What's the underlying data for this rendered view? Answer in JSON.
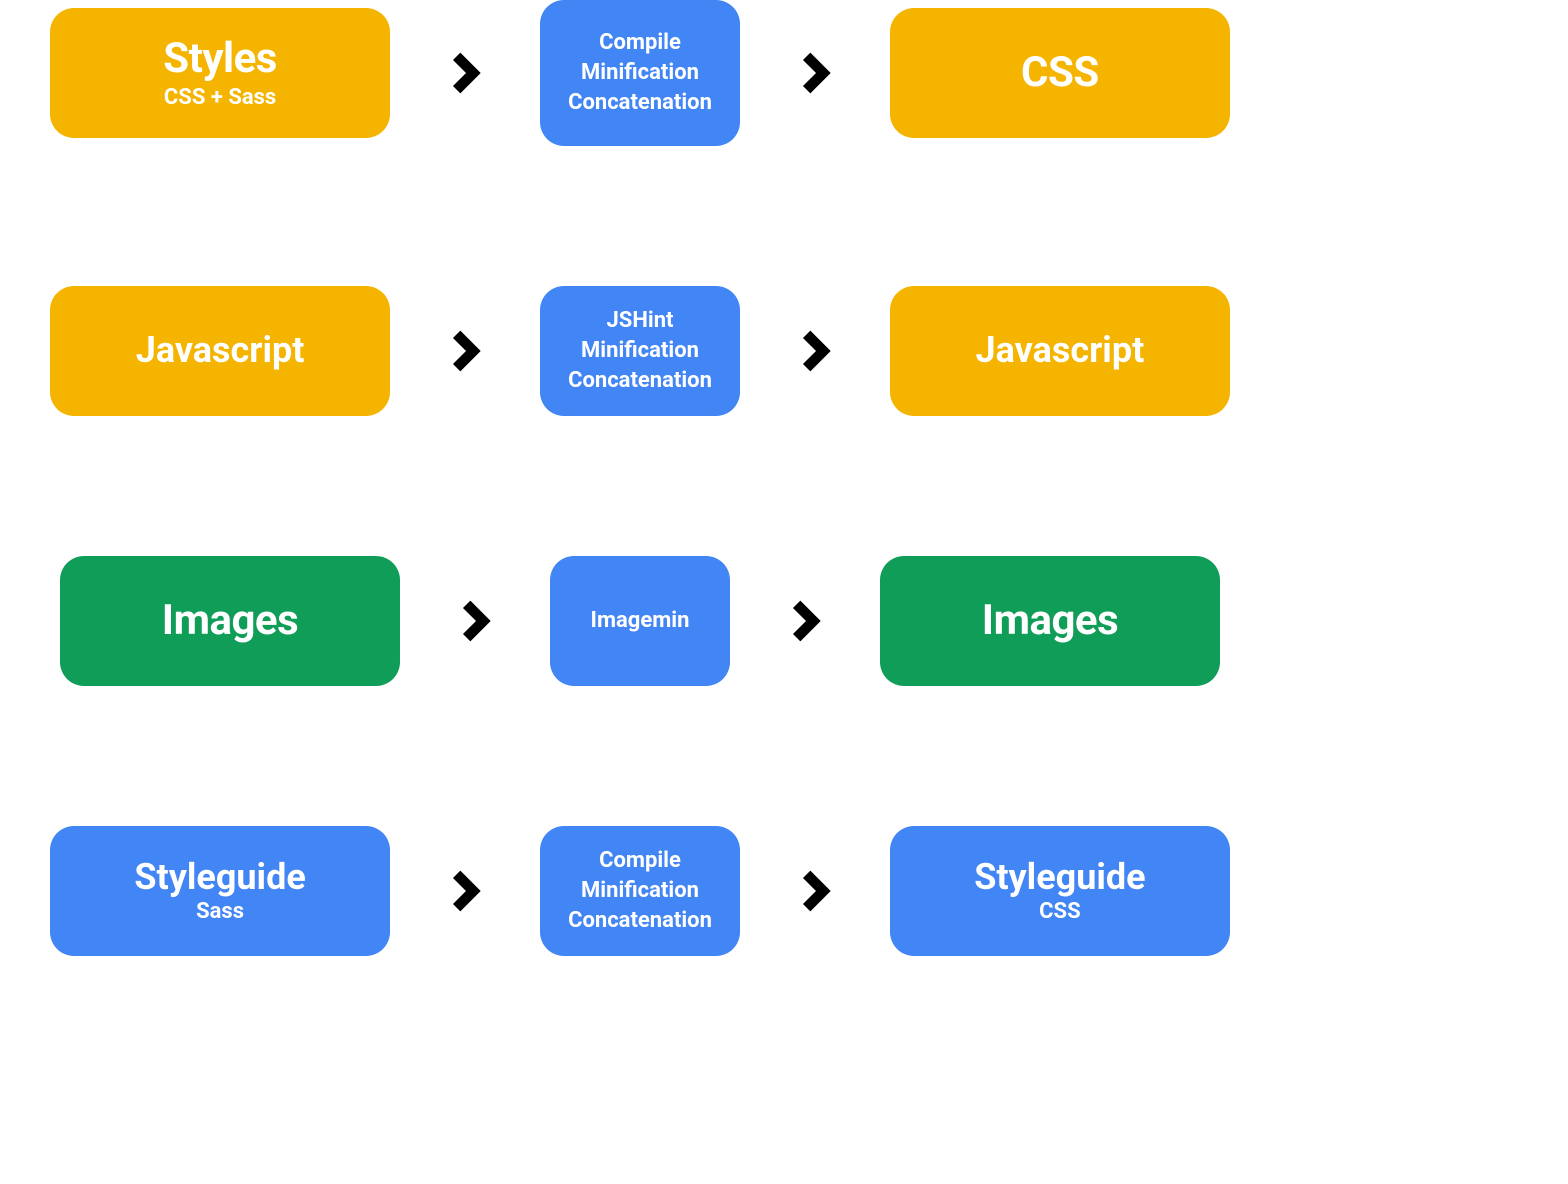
{
  "colors": {
    "yellow": "#f4b400",
    "blue": "#4285f4",
    "green": "#109d58",
    "white": "#ffffff",
    "arrow": "#000000",
    "background": "#ffffff"
  },
  "layout": {
    "box_border_radius": 24,
    "input_output_width": 340,
    "input_output_height": 130,
    "process_min_width": 180,
    "arrow_slot_width": 150,
    "chevron_size": 50,
    "row_gap": 140,
    "title_large_fontsize": 42,
    "title_medium_fontsize": 36,
    "subtitle_fontsize": 22,
    "process_fontsize": 22
  },
  "rows": [
    {
      "input": {
        "title": "Styles",
        "subtitle": "CSS + Sass",
        "color": "yellow",
        "title_class": "title-large"
      },
      "process": {
        "lines": [
          "Compile",
          "Minification",
          "Concatenation"
        ],
        "color": "blue",
        "tall": true
      },
      "output": {
        "title": "CSS",
        "subtitle": "",
        "color": "yellow",
        "title_class": "title-large"
      }
    },
    {
      "input": {
        "title": "Javascript",
        "subtitle": "",
        "color": "yellow",
        "title_class": "title-medium"
      },
      "process": {
        "lines": [
          "JSHint",
          "Minification",
          "Concatenation"
        ],
        "color": "blue",
        "tall": false
      },
      "output": {
        "title": "Javascript",
        "subtitle": "",
        "color": "yellow",
        "title_class": "title-medium"
      }
    },
    {
      "input": {
        "title": "Images",
        "subtitle": "",
        "color": "green",
        "title_class": "title-large"
      },
      "process": {
        "lines": [
          "Imagemin"
        ],
        "color": "blue",
        "tall": false
      },
      "output": {
        "title": "Images",
        "subtitle": "",
        "color": "green",
        "title_class": "title-large"
      }
    },
    {
      "input": {
        "title": "Styleguide",
        "subtitle": "Sass",
        "color": "blue",
        "title_class": "title-medium"
      },
      "process": {
        "lines": [
          "Compile",
          "Minification",
          "Concatenation"
        ],
        "color": "blue",
        "tall": false
      },
      "output": {
        "title": "Styleguide",
        "subtitle": "CSS",
        "color": "blue",
        "title_class": "title-medium"
      }
    }
  ]
}
